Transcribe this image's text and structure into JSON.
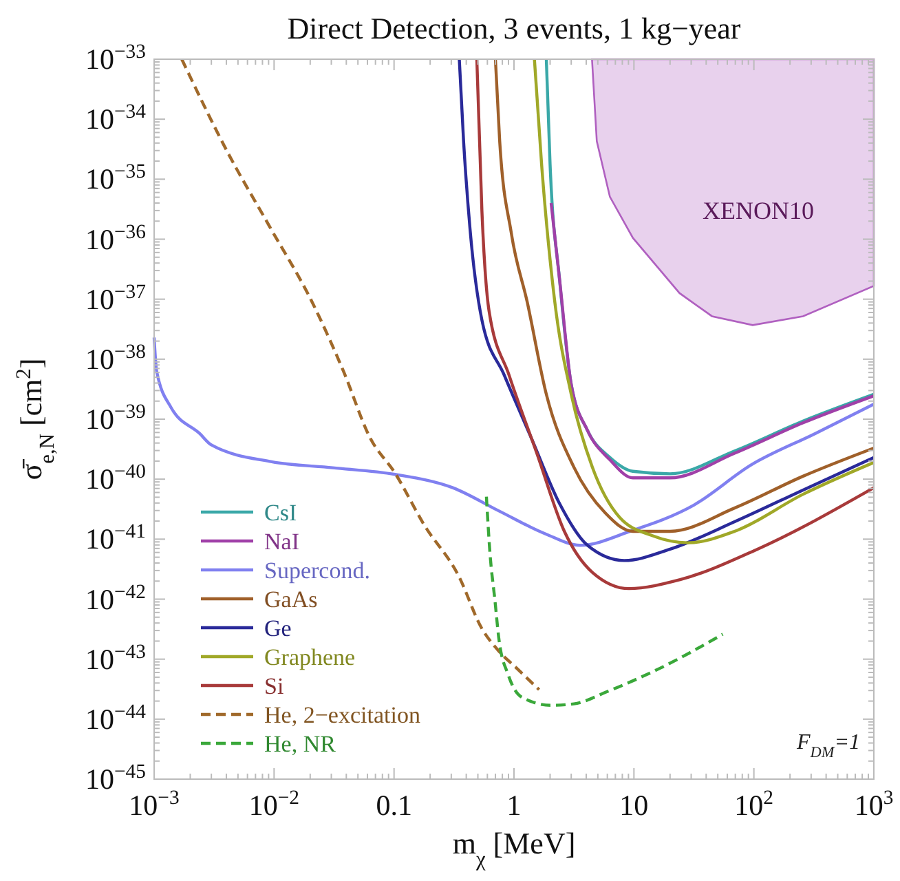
{
  "chart_data": {
    "type": "line",
    "title": "Direct Detection, 3 events, 1 kg−year",
    "xlabel": "m$_{χ}$ [MeV]",
    "ylabel": "σ̄$_{e,N}$ [cm$^{2}$]",
    "log": "xy",
    "grid": false,
    "legend": "bottom left",
    "xlim": [
      0.001,
      1000
    ],
    "ylim": [
      1e-45,
      1e-33
    ],
    "xticks": [
      {
        "value": 0.001,
        "label": "10$^{−3}$"
      },
      {
        "value": 0.01,
        "label": "10$^{−2}$"
      },
      0.1,
      1,
      10,
      {
        "value": 100,
        "label": "10$^{2}$"
      },
      {
        "value": 1000,
        "label": "10$^{3}$"
      }
    ],
    "yticks": [
      {
        "value": 1e-45,
        "label": "10$^{−45}$"
      },
      {
        "value": 1e-44,
        "label": "10$^{−44}$"
      },
      {
        "value": 1e-43,
        "label": "10$^{−43}$"
      },
      {
        "value": 1e-42,
        "label": "10$^{−42}$"
      },
      {
        "value": 1e-41,
        "label": "10$^{−41}$"
      },
      {
        "value": 1e-40,
        "label": "10$^{−40}$"
      },
      {
        "value": 1e-39,
        "label": "10$^{−39}$"
      },
      {
        "value": 1e-38,
        "label": "10$^{−38}$"
      },
      {
        "value": 1e-37,
        "label": "10$^{−37}$"
      },
      {
        "value": 1e-36,
        "label": "10$^{−36}$"
      },
      {
        "value": 1e-35,
        "label": "10$^{−35}$"
      },
      {
        "value": 1e-34,
        "label": "10$^{−34}$"
      },
      {
        "value": 1e-33,
        "label": "10$^{−33}$"
      }
    ],
    "annotations": [
      "XENON10",
      "F$_{DM}$=1"
    ],
    "series": [
      {
        "name": "CsI",
        "color": "#3aa8a8",
        "line_style": "solid",
        "x": [
          1.86,
          2.0,
          2.4,
          3.0,
          4.1,
          6.3,
          9.8,
          20,
          69,
          257,
          1000
        ],
        "values": [
          1e-33,
          1.74e-35,
          2.1e-37,
          3.8e-39,
          6.5e-40,
          2.3e-40,
          1.35e-40,
          1.23e-40,
          2.95e-40,
          9.3e-40,
          2.6e-39
        ]
      },
      {
        "name": "NaI",
        "color": "#a040a8",
        "line_style": "solid",
        "x": [
          2.04,
          2.4,
          3.0,
          4.1,
          6.3,
          9.8,
          20,
          69,
          257,
          1000
        ],
        "values": [
          4e-36,
          2.1e-37,
          3.8e-39,
          6.5e-40,
          2.1e-40,
          1.05e-40,
          1.05e-40,
          2.7e-40,
          8.7e-40,
          2.45e-39
        ]
      },
      {
        "name": "Supercond.",
        "color": "#8080f0",
        "line_style": "solid",
        "x": [
          0.001,
          0.00105,
          0.00138,
          0.0024,
          0.003,
          0.00955,
          0.0309,
          0.102,
          0.309,
          0.75,
          1.82,
          3.55,
          9.55,
          31.6,
          95.5,
          324,
          1000
        ],
        "values": [
          2.29e-38,
          6.3e-39,
          1.58e-39,
          5.75e-40,
          3.72e-40,
          1.95e-40,
          1.55e-40,
          1.2e-40,
          7.2e-41,
          2.95e-41,
          1.23e-41,
          7.9e-42,
          1.38e-41,
          3.7e-41,
          1.74e-40,
          5.75e-40,
          1.78e-39
        ]
      },
      {
        "name": "GaAs",
        "color": "#a0602a",
        "line_style": "solid",
        "x": [
          0.7,
          0.76,
          0.95,
          1.29,
          1.86,
          3.16,
          5.75,
          9.8,
          20,
          69,
          257,
          1000
        ],
        "values": [
          1e-33,
          4.3e-35,
          1.26e-36,
          8.9e-38,
          2.6e-39,
          1.58e-40,
          2.75e-41,
          1.35e-41,
          1.35e-41,
          3.3e-41,
          1.12e-40,
          3.3e-40
        ]
      },
      {
        "name": "Ge",
        "color": "#2a2a9a",
        "line_style": "solid",
        "x": [
          0.35,
          0.38,
          0.43,
          0.54,
          0.83,
          1.41,
          2.4,
          4.1,
          8.3,
          20,
          69,
          257,
          1000
        ],
        "values": [
          1e-33,
          4.3e-35,
          1.48e-36,
          4.5e-38,
          5.4e-39,
          4.6e-40,
          3.9e-41,
          7.9e-42,
          4.4e-42,
          6.8e-42,
          1.95e-41,
          6.6e-41,
          2.3e-40
        ]
      },
      {
        "name": "Graphene",
        "color": "#a0a828",
        "line_style": "solid",
        "x": [
          1.48,
          1.7,
          2.19,
          3.0,
          4.5,
          7.6,
          14.1,
          28.2,
          69,
          257,
          1000
        ],
        "values": [
          1e-33,
          1.74e-35,
          8.9e-38,
          2.6e-39,
          1.58e-40,
          2.3e-41,
          1.15e-41,
          8.7e-42,
          1.35e-41,
          5.6e-41,
          1.9e-40
        ]
      },
      {
        "name": "Si",
        "color": "#a83a3a",
        "line_style": "solid",
        "x": [
          0.49,
          0.54,
          0.62,
          0.91,
          1.55,
          2.63,
          4.5,
          9.1,
          24,
          107,
          1000
        ],
        "values": [
          1e-33,
          3e-36,
          6.3e-38,
          5.4e-39,
          2.7e-40,
          1.35e-41,
          2.8e-42,
          1.5e-42,
          2.1e-42,
          6.8e-42,
          7.2e-41
        ]
      },
      {
        "name": "He, 2−excitation",
        "color": "#a0692a",
        "line_style": "dashed",
        "x": [
          0.0017,
          0.00417,
          0.00912,
          0.0209,
          0.038,
          0.0631,
          0.102,
          0.178,
          0.347,
          0.537,
          0.75,
          1.05,
          1.62
        ],
        "values": [
          1e-33,
          2.63e-35,
          1.66e-36,
          8.7e-38,
          6.2e-39,
          4.9e-40,
          1.26e-40,
          1.74e-41,
          2.4e-42,
          3.3e-43,
          1.35e-43,
          7.1e-44,
          3.1e-44
        ]
      },
      {
        "name": "He, NR",
        "color": "#3aa83a",
        "line_style": "dashed",
        "x": [
          0.589,
          0.631,
          0.692,
          0.75,
          0.891,
          1.17,
          2.04,
          3.16,
          6.17,
          16.6,
          55
        ],
        "values": [
          5.1e-41,
          5.75e-42,
          1e-42,
          2.1e-43,
          5.6e-44,
          2.3e-44,
          1.7e-44,
          1.8e-44,
          2.95e-44,
          7.1e-44,
          2.6e-43
        ]
      },
      {
        "type": "area",
        "color": "#b060c0",
        "line_style": "solid",
        "x": [
          4.47,
          4.9,
          6.3,
          9.8,
          24,
          44.7,
          97.7,
          257,
          1000,
          1000
        ],
        "values": [
          1e-33,
          4.3e-35,
          5.1e-36,
          1.05e-36,
          1.26e-37,
          5.2e-38,
          3.7e-38,
          5.2e-38,
          1.66e-37,
          1e-33
        ]
      }
    ]
  }
}
